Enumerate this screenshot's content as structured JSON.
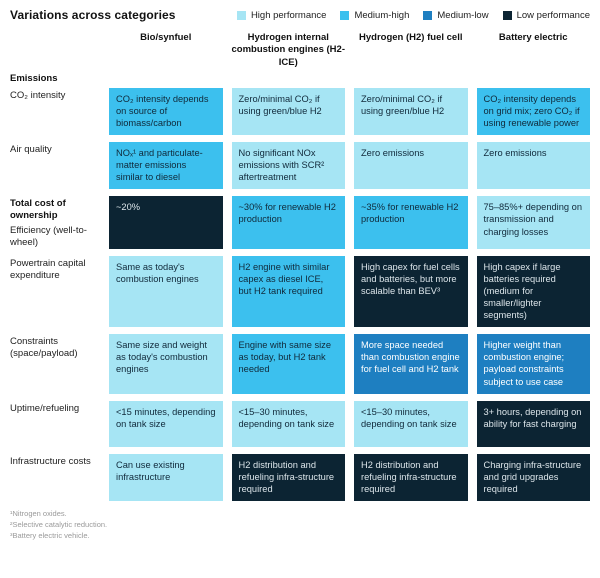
{
  "title": "Variations across categories",
  "levels": {
    "high": {
      "label": "High performance",
      "color": "#A6E5F4",
      "text_color": "#10293A"
    },
    "medium_high": {
      "label": "Medium-high",
      "color": "#3CC0EE",
      "text_color": "#10293A"
    },
    "medium_low": {
      "label": "Medium-low",
      "color": "#1E7FC1",
      "text_color": "#FFFFFF"
    },
    "low": {
      "label": "Low performance",
      "color": "#0C2433",
      "text_color": "#DCE5EA"
    }
  },
  "legend_order": [
    "high",
    "medium_high",
    "medium_low",
    "low"
  ],
  "chart_data": {
    "type": "table",
    "title": "Variations across categories",
    "legend": [
      "High performance",
      "Medium-high",
      "Medium-low",
      "Low performance"
    ],
    "legend_position": "top-right",
    "columns": [
      "Bio/synfuel",
      "Hydrogen internal combustion engines (H2-ICE)",
      "Hydrogen (H2) fuel cell",
      "Battery electric"
    ],
    "rows": [
      {
        "type": "section",
        "label": "Emissions"
      },
      {
        "type": "data",
        "label": "CO₂ intensity",
        "cells": [
          {
            "level": "medium_high",
            "text": "CO₂ intensity depends on source of biomass/carbon"
          },
          {
            "level": "high",
            "text": "Zero/minimal CO₂ if using green/blue H2"
          },
          {
            "level": "high",
            "text": "Zero/minimal CO₂ if using green/blue H2"
          },
          {
            "level": "medium_high",
            "text": "CO₂ intensity depends on grid mix; zero CO₂ if using renewable power"
          }
        ]
      },
      {
        "type": "data",
        "label": "Air quality",
        "cells": [
          {
            "level": "medium_high",
            "text": "NOₓ¹ and particulate-matter emissions similar to diesel"
          },
          {
            "level": "high",
            "text": "No significant NOx emissions with SCR² aftertreatment"
          },
          {
            "level": "high",
            "text": "Zero emissions"
          },
          {
            "level": "high",
            "text": "Zero emissions"
          }
        ]
      },
      {
        "type": "data",
        "section": "Total cost of ownership",
        "label": "Efficiency (well-to-wheel)",
        "cells": [
          {
            "level": "low",
            "text": "~20%"
          },
          {
            "level": "medium_high",
            "text": "~30% for renewable H2 production"
          },
          {
            "level": "medium_high",
            "text": "~35% for renewable H2 production"
          },
          {
            "level": "high",
            "text": "75–85%+ depending on transmission and charging losses"
          }
        ]
      },
      {
        "type": "data",
        "label": "Powertrain capital expenditure",
        "cells": [
          {
            "level": "high",
            "text": "Same as today's combustion engines"
          },
          {
            "level": "medium_high",
            "text": "H2 engine with similar capex as diesel ICE, but H2 tank required"
          },
          {
            "level": "low",
            "text": "High capex for fuel cells and batteries, but more scalable than BEV³"
          },
          {
            "level": "low",
            "text": "High capex if large batteries required (medium for smaller/lighter segments)"
          }
        ]
      },
      {
        "type": "data",
        "label": "Constraints (space/payload)",
        "cells": [
          {
            "level": "high",
            "text": "Same size and weight as today's combustion engines"
          },
          {
            "level": "medium_high",
            "text": "Engine with same size as today, but H2 tank needed"
          },
          {
            "level": "medium_low",
            "text": "More space needed than combustion engine for fuel cell and H2 tank"
          },
          {
            "level": "medium_low",
            "text": "Higher weight than combustion engine; payload constraints subject to use case"
          }
        ]
      },
      {
        "type": "data",
        "label": "Uptime/refueling",
        "cells": [
          {
            "level": "high",
            "text": "<15 minutes, depending on tank size"
          },
          {
            "level": "high",
            "text": "<15–30 minutes, depending on tank size"
          },
          {
            "level": "high",
            "text": "<15–30 minutes, depending on tank size"
          },
          {
            "level": "low",
            "text": "3+ hours, depending on ability for fast charging"
          }
        ]
      },
      {
        "type": "data",
        "label": "Infrastructure costs",
        "cells": [
          {
            "level": "high",
            "text": "Can use existing infrastructure"
          },
          {
            "level": "low",
            "text": "H2 distribution and refueling infra-structure required"
          },
          {
            "level": "low",
            "text": "H2 distribution and refueling infra-structure required"
          },
          {
            "level": "low",
            "text": "Charging infra-structure and grid upgrades required"
          }
        ]
      }
    ]
  },
  "footnotes": [
    "¹Nitrogen oxides.",
    "²Selective catalytic reduction.",
    "³Battery electric vehicle."
  ]
}
